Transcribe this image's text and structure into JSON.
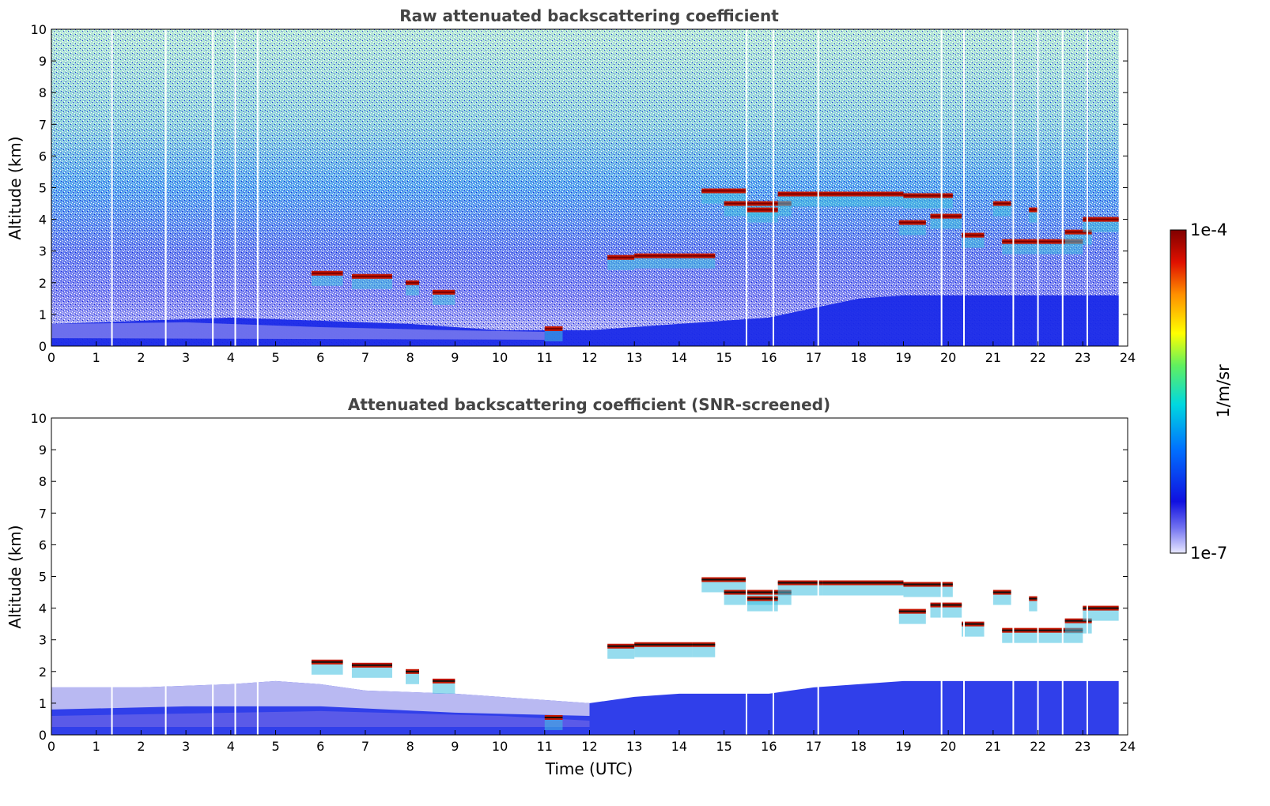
{
  "chart_data": [
    {
      "type": "heatmap",
      "title": "Raw attenuated backscattering coefficient",
      "xlabel": "",
      "ylabel": "Altitude (km)",
      "xlim": [
        0,
        24
      ],
      "ylim": [
        0,
        10
      ],
      "x_ticks": [
        0,
        1,
        2,
        3,
        4,
        5,
        6,
        7,
        8,
        9,
        10,
        11,
        12,
        13,
        14,
        15,
        16,
        17,
        18,
        19,
        20,
        21,
        22,
        23,
        24
      ],
      "y_ticks": [
        0,
        1,
        2,
        3,
        4,
        5,
        6,
        7,
        8,
        9,
        10
      ],
      "colorscale": "log",
      "vmin": "1e-7",
      "vmax": "1e-4",
      "noisy_background": true,
      "boundary_layer_top_km": [
        [
          0,
          0.7
        ],
        [
          2,
          0.8
        ],
        [
          4,
          0.9
        ],
        [
          6,
          0.8
        ],
        [
          8,
          0.7
        ],
        [
          10,
          0.5
        ],
        [
          12,
          0.5
        ],
        [
          14,
          0.7
        ],
        [
          16,
          0.9
        ],
        [
          17,
          1.2
        ],
        [
          18,
          1.5
        ],
        [
          19,
          1.6
        ],
        [
          20,
          1.6
        ],
        [
          22,
          1.6
        ],
        [
          23.8,
          1.6
        ]
      ],
      "cloud_layers": [
        {
          "start": 5.8,
          "end": 6.5,
          "altitude": 2.3
        },
        {
          "start": 6.7,
          "end": 7.6,
          "altitude": 2.2
        },
        {
          "start": 7.9,
          "end": 8.2,
          "altitude": 2.0
        },
        {
          "start": 8.5,
          "end": 9.0,
          "altitude": 1.7
        },
        {
          "start": 11.0,
          "end": 11.4,
          "altitude": 0.55
        },
        {
          "start": 12.4,
          "end": 13.0,
          "altitude": 2.8
        },
        {
          "start": 13.0,
          "end": 14.3,
          "altitude": 2.85
        },
        {
          "start": 14.3,
          "end": 14.8,
          "altitude": 2.85
        },
        {
          "start": 14.5,
          "end": 15.5,
          "altitude": 4.9
        },
        {
          "start": 15.0,
          "end": 16.5,
          "altitude": 4.5
        },
        {
          "start": 15.5,
          "end": 16.2,
          "altitude": 4.3
        },
        {
          "start": 16.2,
          "end": 17.2,
          "altitude": 4.8
        },
        {
          "start": 17.2,
          "end": 19.0,
          "altitude": 4.8
        },
        {
          "start": 19.0,
          "end": 20.1,
          "altitude": 4.75
        },
        {
          "start": 18.9,
          "end": 19.5,
          "altitude": 3.9
        },
        {
          "start": 19.6,
          "end": 20.3,
          "altitude": 4.1
        },
        {
          "start": 20.3,
          "end": 20.8,
          "altitude": 3.5
        },
        {
          "start": 21.0,
          "end": 21.4,
          "altitude": 4.5
        },
        {
          "start": 21.2,
          "end": 23.0,
          "altitude": 3.3
        },
        {
          "start": 22.6,
          "end": 23.2,
          "altitude": 3.6
        },
        {
          "start": 21.8,
          "end": 22.0,
          "altitude": 4.3
        },
        {
          "start": 23.0,
          "end": 23.8,
          "altitude": 4.0
        }
      ],
      "data_gaps": [
        1.35,
        2.55,
        3.6,
        4.1,
        4.6,
        15.5,
        16.1,
        17.1,
        19.85,
        20.35,
        21.45,
        22.0,
        22.55,
        23.1
      ]
    },
    {
      "type": "heatmap",
      "title": "Attenuated backscattering coefficient (SNR-screened)",
      "xlabel": "Time (UTC)",
      "ylabel": "Altitude (km)",
      "xlim": [
        0,
        24
      ],
      "ylim": [
        0,
        10
      ],
      "x_ticks": [
        0,
        1,
        2,
        3,
        4,
        5,
        6,
        7,
        8,
        9,
        10,
        11,
        12,
        13,
        14,
        15,
        16,
        17,
        18,
        19,
        20,
        21,
        22,
        23,
        24
      ],
      "y_ticks": [
        0,
        1,
        2,
        3,
        4,
        5,
        6,
        7,
        8,
        9,
        10
      ],
      "colorscale": "log",
      "vmin": "1e-7",
      "vmax": "1e-4",
      "noisy_background": false,
      "boundary_layer_top_km": [
        [
          0,
          1.5
        ],
        [
          2,
          1.5
        ],
        [
          4,
          1.6
        ],
        [
          5,
          1.7
        ],
        [
          6,
          1.6
        ],
        [
          7,
          1.4
        ],
        [
          9,
          1.3
        ],
        [
          10,
          1.2
        ],
        [
          12,
          1.0
        ],
        [
          13,
          1.2
        ],
        [
          14,
          1.3
        ],
        [
          15,
          1.3
        ],
        [
          16,
          1.3
        ],
        [
          17,
          1.5
        ],
        [
          18,
          1.6
        ],
        [
          19,
          1.7
        ],
        [
          20,
          1.7
        ],
        [
          22,
          1.7
        ],
        [
          23.8,
          1.7
        ]
      ],
      "cloud_layers": [
        {
          "start": 5.8,
          "end": 6.5,
          "altitude": 2.3
        },
        {
          "start": 6.7,
          "end": 7.6,
          "altitude": 2.2
        },
        {
          "start": 7.9,
          "end": 8.2,
          "altitude": 2.0
        },
        {
          "start": 8.5,
          "end": 9.0,
          "altitude": 1.7
        },
        {
          "start": 11.0,
          "end": 11.4,
          "altitude": 0.55
        },
        {
          "start": 12.4,
          "end": 13.0,
          "altitude": 2.8
        },
        {
          "start": 13.0,
          "end": 14.3,
          "altitude": 2.85
        },
        {
          "start": 14.3,
          "end": 14.8,
          "altitude": 2.85
        },
        {
          "start": 14.5,
          "end": 15.5,
          "altitude": 4.9
        },
        {
          "start": 15.0,
          "end": 16.5,
          "altitude": 4.5
        },
        {
          "start": 15.5,
          "end": 16.2,
          "altitude": 4.3
        },
        {
          "start": 16.2,
          "end": 17.2,
          "altitude": 4.8
        },
        {
          "start": 17.2,
          "end": 19.0,
          "altitude": 4.8
        },
        {
          "start": 19.0,
          "end": 20.1,
          "altitude": 4.75
        },
        {
          "start": 18.9,
          "end": 19.5,
          "altitude": 3.9
        },
        {
          "start": 19.6,
          "end": 20.3,
          "altitude": 4.1
        },
        {
          "start": 20.3,
          "end": 20.8,
          "altitude": 3.5
        },
        {
          "start": 21.0,
          "end": 21.4,
          "altitude": 4.5
        },
        {
          "start": 21.2,
          "end": 23.0,
          "altitude": 3.3
        },
        {
          "start": 22.6,
          "end": 23.2,
          "altitude": 3.6
        },
        {
          "start": 21.8,
          "end": 22.0,
          "altitude": 4.3
        },
        {
          "start": 23.0,
          "end": 23.8,
          "altitude": 4.0
        }
      ],
      "data_gaps": [
        1.35,
        2.55,
        3.6,
        4.1,
        4.6,
        15.5,
        16.1,
        17.1,
        19.85,
        20.35,
        21.45,
        22.0,
        22.55,
        23.1
      ]
    }
  ],
  "colorbar": {
    "label": "1/m/sr",
    "max_label": "1e-4",
    "min_label": "1e-7",
    "colors": [
      "#d4d4ff",
      "#1515e0",
      "#0060ff",
      "#00d0e0",
      "#60f060",
      "#ffff00",
      "#ff9000",
      "#dd1500",
      "#800000"
    ]
  }
}
